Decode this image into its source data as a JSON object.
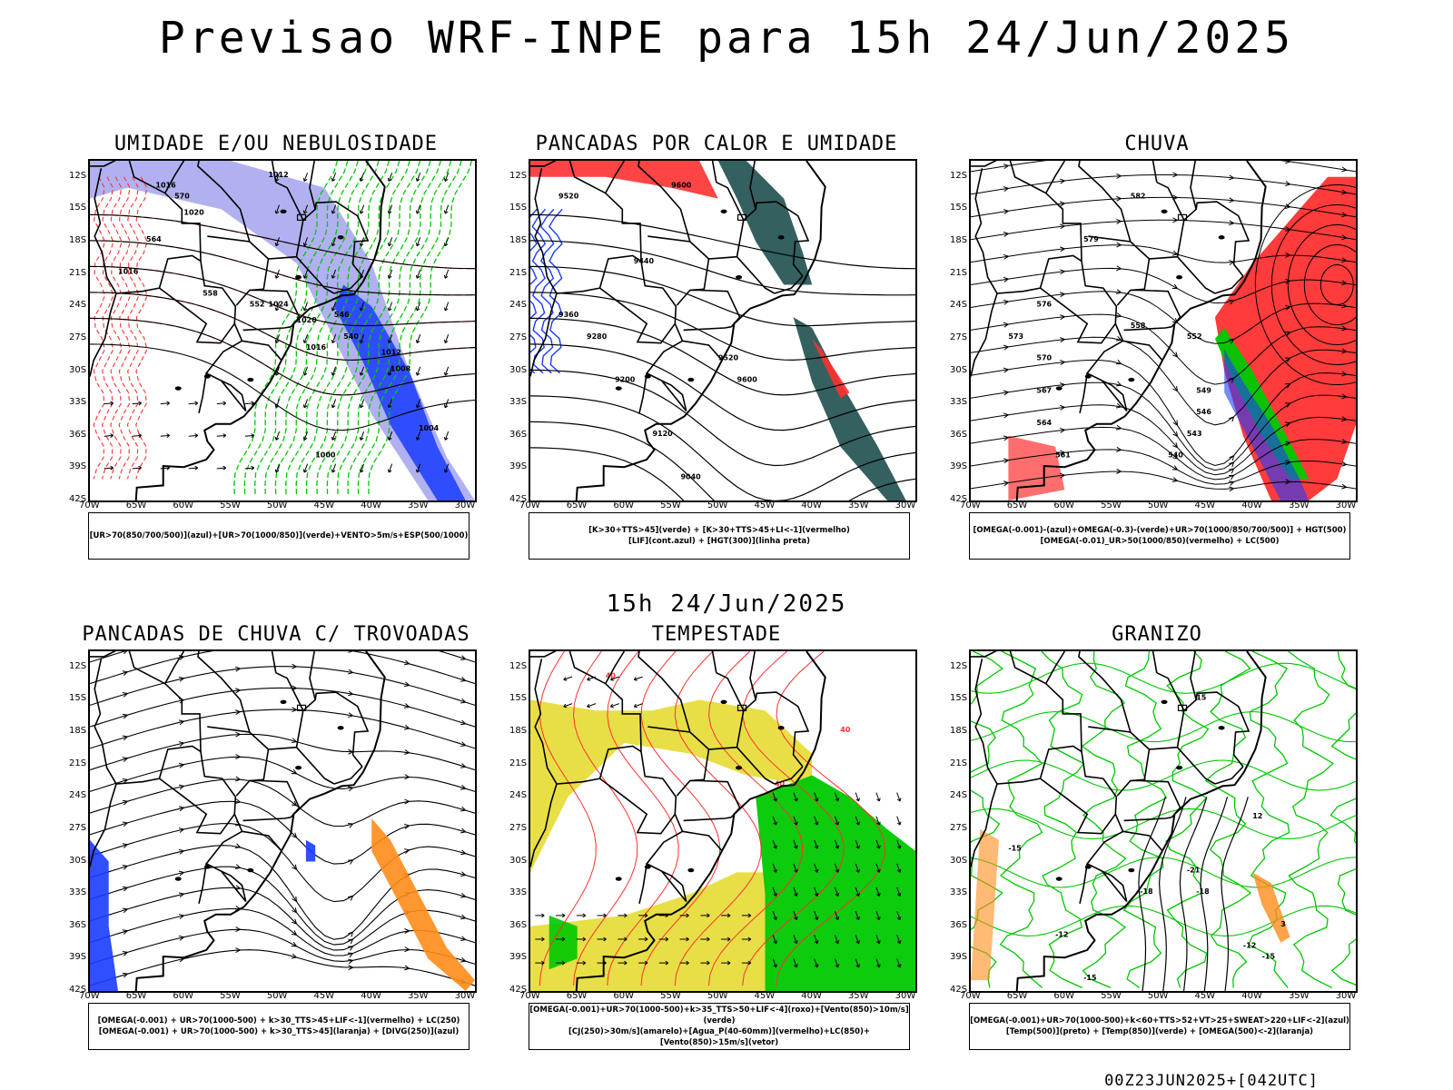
{
  "header": {
    "title": "Previsao WRF-INPE  para 15h 24/Jun/2025"
  },
  "mid_title": "15h 24/Jun/2025",
  "footer": "00Z23JUN2025+[042UTC]",
  "axes": {
    "lat_labels": [
      "12S",
      "15S",
      "18S",
      "21S",
      "24S",
      "27S",
      "30S",
      "33S",
      "36S",
      "39S",
      "42S"
    ],
    "lon_labels": [
      "70W",
      "65W",
      "60W",
      "55W",
      "50W",
      "45W",
      "40W",
      "35W",
      "30W"
    ]
  },
  "panels": [
    {
      "title": "UMIDADE E/OU NEBULOSIDADE",
      "legend": [
        "[UR>70(850/700/500)](azul)+[UR>70(1000/850)](verde)+VENTO>5m/s+ESP(500/1000)"
      ],
      "labels": [
        "1016",
        "1012",
        "1020",
        "1016",
        "1024",
        "1020",
        "1016",
        "1012",
        "1008",
        "1004",
        "1000",
        "570",
        "564",
        "558",
        "552",
        "546",
        "540"
      ]
    },
    {
      "title": "PANCADAS POR CALOR E UMIDADE",
      "legend": [
        "[K>30+TTS>45](verde) + [K>30+TTS>45+LI<-1](vermelho)",
        "[LIF](cont.azul) + [HGT(300)](linha preta)"
      ],
      "labels": [
        "9600",
        "9520",
        "9440",
        "9360",
        "9280",
        "9200",
        "9120",
        "9040",
        "9520",
        "9600"
      ]
    },
    {
      "title": "CHUVA",
      "legend": [
        "[OMEGA(-0.001)-(azul)+OMEGA(-0.3)-(verde)+UR>70(1000/850/700/500)] + HGT(500)",
        "[OMEGA(-0.01)_UR>50(1000/850)(vermelho) + LC(500)"
      ],
      "labels": [
        "582",
        "579",
        "576",
        "573",
        "570",
        "567",
        "564",
        "561",
        "558",
        "552",
        "549",
        "546",
        "543",
        "540"
      ]
    },
    {
      "title": "PANCADAS DE CHUVA C/ TROVOADAS",
      "legend": [
        "[OMEGA(-0.001) + UR>70(1000-500) + k>30_TTS>45+LIF<-1](vermelho) + LC(250)",
        "[OMEGA(-0.001) + UR>70(1000-500) + k>30_TTS>45](laranja) + [DIVG(250)](azul)"
      ],
      "labels": []
    },
    {
      "title": "TEMPESTADE",
      "legend": [
        "[OMEGA(-0.001)+UR>70(1000-500)+k>35_TTS>50+LIF<-4](roxo)+[Vento(850)>10m/s](verde)",
        "[CJ(250)>30m/s](amarelo)+[Agua_P(40-60mm)](vermelho)+LC(850)+[Vento(850)>15m/s](vetor)"
      ],
      "labels": [
        "40",
        "40",
        "40"
      ]
    },
    {
      "title": "GRANIZO",
      "legend": [
        "[OMEGA(-0.001)+UR>70(1000-500)+k<60+TTS>52+VT>25+SWEAT>220+LIF<-2](azul)",
        "[Temp(500)](preto) + [Temp(850)](verde) + [OMEGA(500)<-2](laranja)"
      ],
      "labels": [
        "-15",
        "-12",
        "-15",
        "-18",
        "-21",
        "-18",
        "-12",
        "-15",
        "3",
        "12",
        "15"
      ]
    }
  ],
  "colors": {
    "blue": "#1a3cff",
    "green": "#00c800",
    "red": "#ff3030",
    "dark_teal": "#1f4f4f",
    "yellow": "#e6dc32",
    "orange": "#ff8c1a",
    "lavender": "#a9a9f0"
  }
}
